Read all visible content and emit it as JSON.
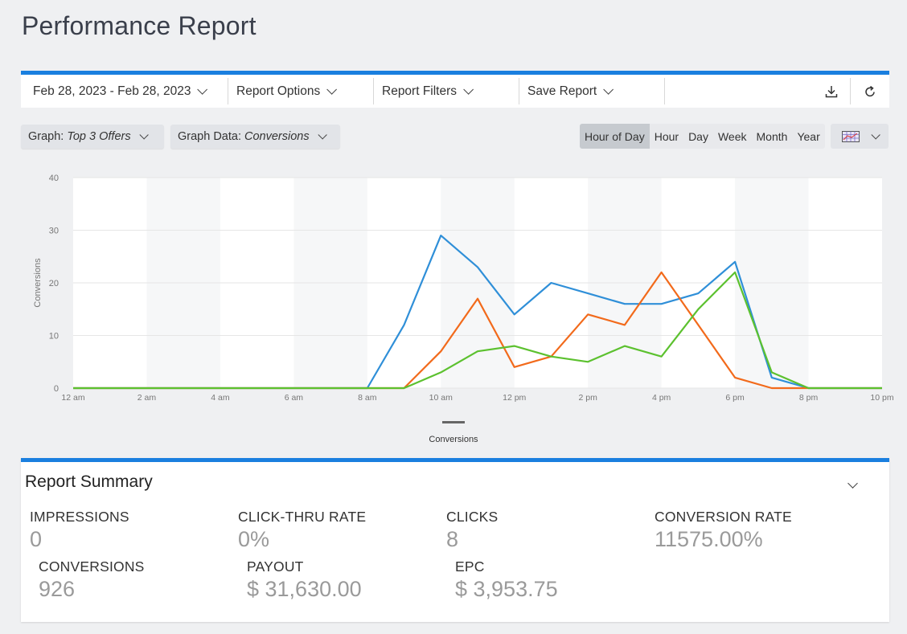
{
  "page": {
    "title": "Performance Report"
  },
  "toolbar": {
    "date_range": "Feb 28, 2023 - Feb 28, 2023",
    "report_options": "Report Options",
    "report_filters": "Report Filters",
    "save_report": "Save Report",
    "download_icon": "download-icon",
    "refresh_icon": "refresh-icon"
  },
  "graph_controls": {
    "graph_label": "Graph:",
    "graph_value": "Top 3 Offers",
    "data_label": "Graph Data:",
    "data_value": "Conversions",
    "periods": [
      "Hour of Day",
      "Hour",
      "Day",
      "Week",
      "Month",
      "Year"
    ],
    "active_period": "Hour of Day",
    "chart_type_icon": "chart-grid-icon"
  },
  "chart_data": {
    "type": "line",
    "ylabel": "Conversions",
    "xlabel": "",
    "ylim": [
      0,
      40
    ],
    "yticks": [
      0,
      10,
      20,
      30,
      40
    ],
    "x": [
      "12 am",
      "1 am",
      "2 am",
      "3 am",
      "4 am",
      "5 am",
      "6 am",
      "7 am",
      "8 am",
      "9 am",
      "10 am",
      "11 am",
      "12 pm",
      "1 pm",
      "2 pm",
      "3 pm",
      "4 pm",
      "5 pm",
      "6 pm",
      "7 pm",
      "8 pm",
      "9 pm",
      "10 pm"
    ],
    "xtick_labels": [
      "12 am",
      "2 am",
      "4 am",
      "6 am",
      "8 am",
      "10 am",
      "12 pm",
      "2 pm",
      "4 pm",
      "6 pm",
      "8 pm",
      "10 pm"
    ],
    "series": [
      {
        "color": "#2f8fd8",
        "values": [
          0,
          0,
          0,
          0,
          0,
          0,
          0,
          0,
          0,
          12,
          29,
          23,
          14,
          20,
          18,
          16,
          16,
          18,
          24,
          2,
          0,
          0,
          0
        ]
      },
      {
        "color": "#f26a1b",
        "values": [
          0,
          0,
          0,
          0,
          0,
          0,
          0,
          0,
          0,
          0,
          7,
          17,
          4,
          6,
          14,
          12,
          22,
          12,
          2,
          0,
          0,
          0,
          0
        ]
      },
      {
        "color": "#5cc12f",
        "values": [
          0,
          0,
          0,
          0,
          0,
          0,
          0,
          0,
          0,
          0,
          3,
          7,
          8,
          6,
          5,
          8,
          6,
          15,
          22,
          3,
          0,
          0,
          0
        ]
      }
    ],
    "legend": {
      "label": "Conversions",
      "placement": "bottom"
    },
    "grid": true
  },
  "summary": {
    "title": "Report Summary",
    "metrics": [
      {
        "label": "IMPRESSIONS",
        "value": "0"
      },
      {
        "label": "CLICK-THRU RATE",
        "value": "0%"
      },
      {
        "label": "CLICKS",
        "value": "8"
      },
      {
        "label": "CONVERSION RATE",
        "value": "11575.00%"
      },
      {
        "label": "CONVERSIONS",
        "value": "926"
      },
      {
        "label": "PAYOUT",
        "value": "$ 31,630.00"
      },
      {
        "label": "EPC",
        "value": "$ 3,953.75"
      }
    ]
  }
}
